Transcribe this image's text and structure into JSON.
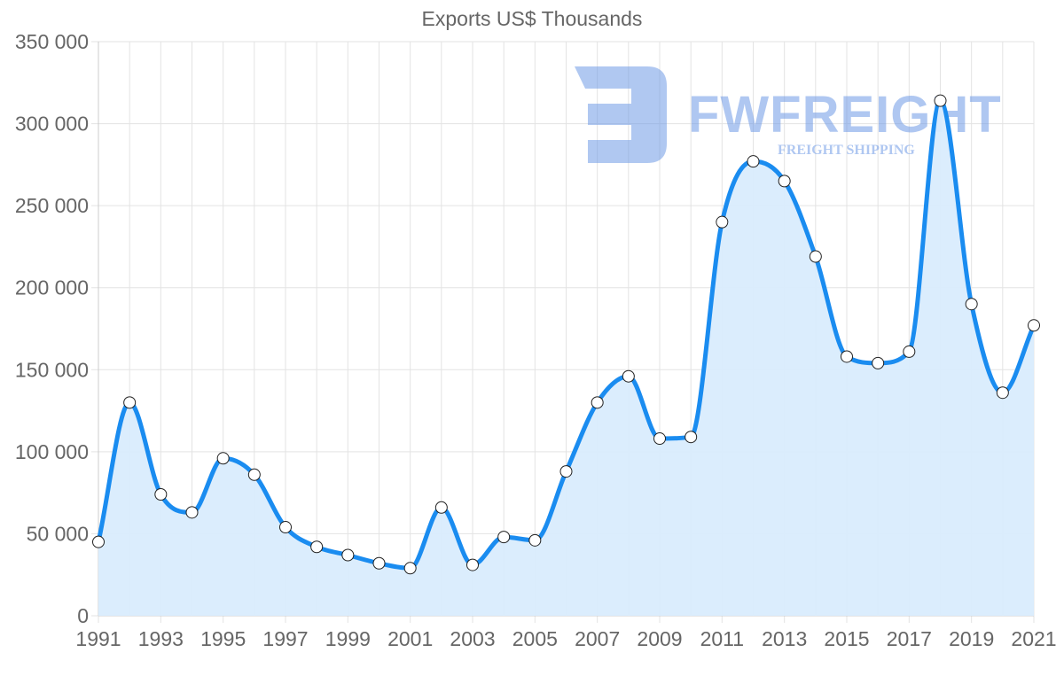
{
  "chart_data": {
    "type": "line",
    "title": "Exports US$ Thousands",
    "xlabel": "",
    "ylabel": "",
    "ylim": [
      0,
      350000
    ],
    "yticks": [
      0,
      50000,
      100000,
      150000,
      200000,
      250000,
      300000,
      350000
    ],
    "ytick_labels": [
      "0",
      "50 000",
      "100 000",
      "150 000",
      "200 000",
      "250 000",
      "300 000",
      "350 000"
    ],
    "xtick_labels": [
      "1991",
      "1993",
      "1995",
      "1997",
      "1999",
      "2001",
      "2003",
      "2005",
      "2007",
      "2009",
      "2011",
      "2013",
      "2015",
      "2017",
      "2019",
      "2021"
    ],
    "grid": true,
    "legend": null,
    "fill": true,
    "categories": [
      "1991",
      "1992",
      "1993",
      "1994",
      "1995",
      "1996",
      "1997",
      "1998",
      "1999",
      "2000",
      "2001",
      "2002",
      "2003",
      "2004",
      "2005",
      "2006",
      "2007",
      "2008",
      "2009",
      "2010",
      "2011",
      "2012",
      "2013",
      "2014",
      "2015",
      "2016",
      "2017",
      "2018",
      "2019",
      "2020",
      "2021"
    ],
    "series": [
      {
        "name": "Exports US$ Thousands",
        "values": [
          45000,
          130000,
          74000,
          63000,
          96000,
          86000,
          54000,
          42000,
          37000,
          32000,
          29000,
          66000,
          31000,
          48000,
          46000,
          88000,
          130000,
          146000,
          108000,
          109000,
          240000,
          277000,
          265000,
          219000,
          158000,
          154000,
          161000,
          314000,
          190000,
          136000,
          177000
        ]
      }
    ]
  },
  "colors": {
    "line": "#1a8cf0",
    "fill": "#d9ecfd",
    "grid": "#e3e3e3",
    "text": "#666666",
    "watermark": "#a9c4f0"
  },
  "watermark": {
    "brand": "FWFREIGHT",
    "tagline": "FREIGHT SHIPPING"
  }
}
